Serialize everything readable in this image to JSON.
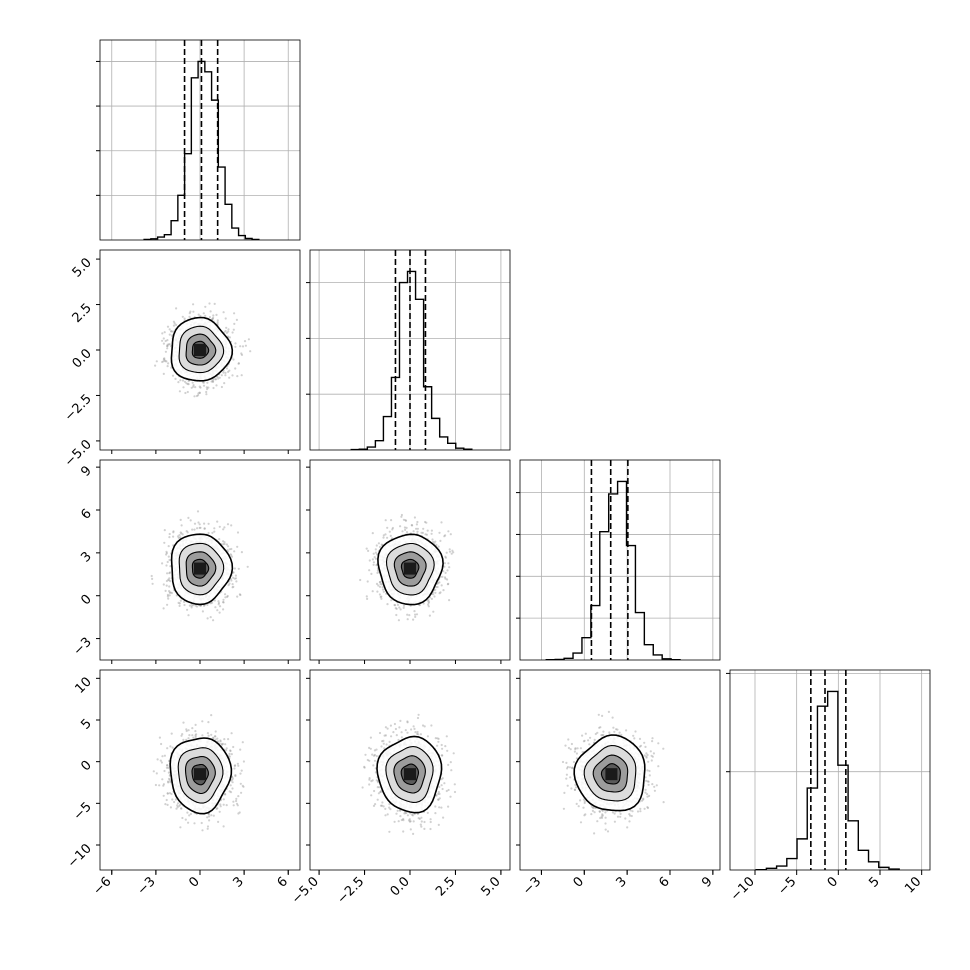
{
  "chart_data": {
    "type": "corner",
    "n_params": 4,
    "grid": true,
    "params": [
      {
        "lim": [
          -6.8,
          6.8
        ],
        "ticks": [
          -6,
          -3,
          0,
          3,
          6
        ],
        "tick_labels": [
          "−6",
          "−3",
          "0",
          "3",
          "6"
        ],
        "quantiles": [
          -1.05,
          0.1,
          1.2
        ],
        "center": 0.0,
        "sigma": 1.0,
        "hist_counts": [
          2,
          4,
          10,
          18,
          65,
          150,
          290,
          545,
          600,
          565,
          470,
          245,
          120,
          40,
          15,
          5,
          2
        ]
      },
      {
        "lim": [
          -5.5,
          5.5
        ],
        "ticks": [
          -5.0,
          -2.5,
          0.0,
          2.5,
          5.0
        ],
        "tick_labels": [
          "−5.0",
          "−2.5",
          "0.0",
          "2.5",
          "5.0"
        ],
        "quantiles": [
          -0.8,
          0.0,
          0.85
        ],
        "center": 0.0,
        "sigma": 0.85,
        "hist_counts": [
          1,
          2,
          8,
          25,
          90,
          195,
          450,
          480,
          405,
          170,
          85,
          35,
          18,
          5,
          2
        ]
      },
      {
        "lim": [
          -4.5,
          9.5
        ],
        "ticks": [
          -3,
          0,
          3,
          6,
          9
        ],
        "tick_labels": [
          "−3",
          "0",
          "3",
          "6",
          "9"
        ],
        "quantiles": [
          0.5,
          1.85,
          3.05
        ],
        "center": 1.9,
        "sigma": 1.2,
        "hist_counts": [
          1,
          2,
          6,
          25,
          80,
          195,
          460,
          595,
          640,
          410,
          170,
          55,
          18,
          4,
          1
        ]
      },
      {
        "lim": [
          -13,
          11
        ],
        "ticks": [
          -10,
          -5,
          0,
          5,
          10
        ],
        "tick_labels": [
          "−10",
          "−5",
          "0",
          "5",
          "10"
        ],
        "quantiles": [
          -3.3,
          -1.6,
          0.9
        ],
        "center": -1.5,
        "sigma": 2.2,
        "hist_counts": [
          1,
          5,
          12,
          35,
          95,
          250,
          500,
          545,
          320,
          150,
          60,
          25,
          8,
          3
        ]
      }
    ]
  }
}
